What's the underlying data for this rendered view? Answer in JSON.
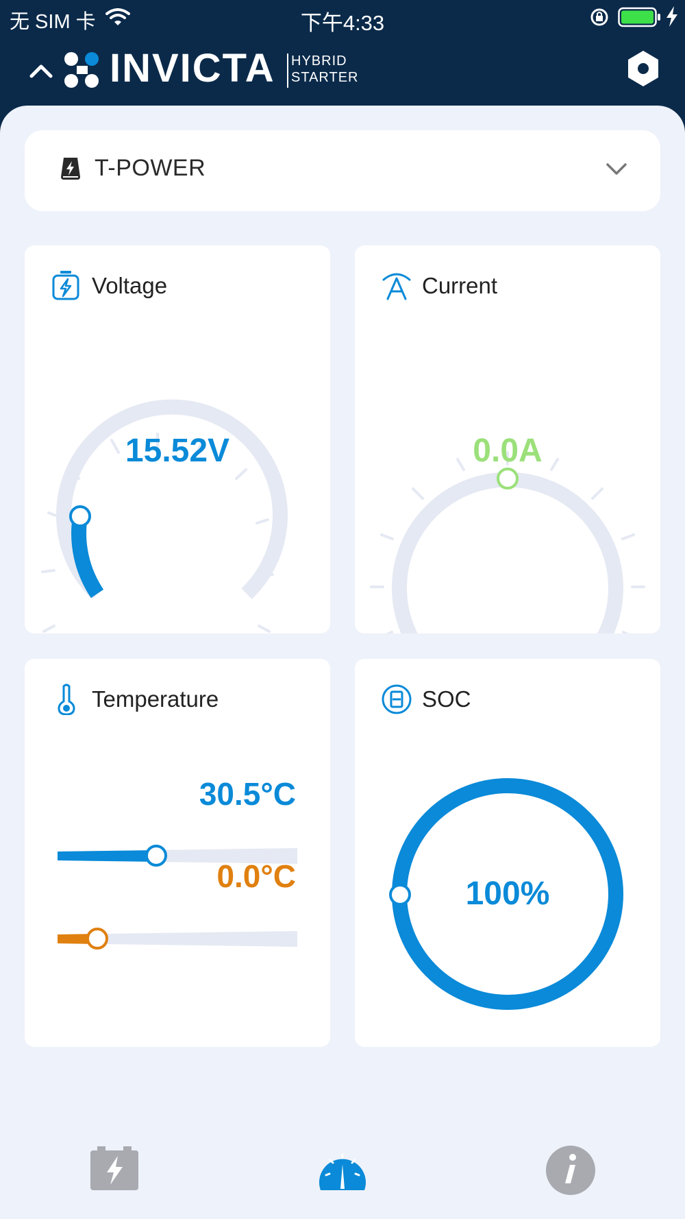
{
  "status_bar": {
    "carrier": "无 SIM 卡",
    "time": "下午4:33"
  },
  "header": {
    "brand": "INVICTA",
    "tagline_1": "HYBRID",
    "tagline_2": "STARTER"
  },
  "device": {
    "name": "T-POWER"
  },
  "cards": {
    "voltage": {
      "title": "Voltage",
      "value": "15.52V"
    },
    "current": {
      "title": "Current",
      "value": "0.0A"
    },
    "temperature": {
      "title": "Temperature",
      "value_high": "30.5°C",
      "value_low": "0.0°C"
    },
    "soc": {
      "title": "SOC",
      "value": "100%",
      "level": 1.0
    }
  },
  "colors": {
    "navy": "#0b2a4a",
    "blue": "#0a8ad8",
    "green": "#9be07a",
    "orange": "#e08010",
    "track": "#e5e9f3",
    "icon_gray": "#a8aab0"
  },
  "nav": {
    "items": [
      "battery-icon",
      "gauge-icon",
      "info-icon"
    ],
    "active": "gauge-icon"
  }
}
